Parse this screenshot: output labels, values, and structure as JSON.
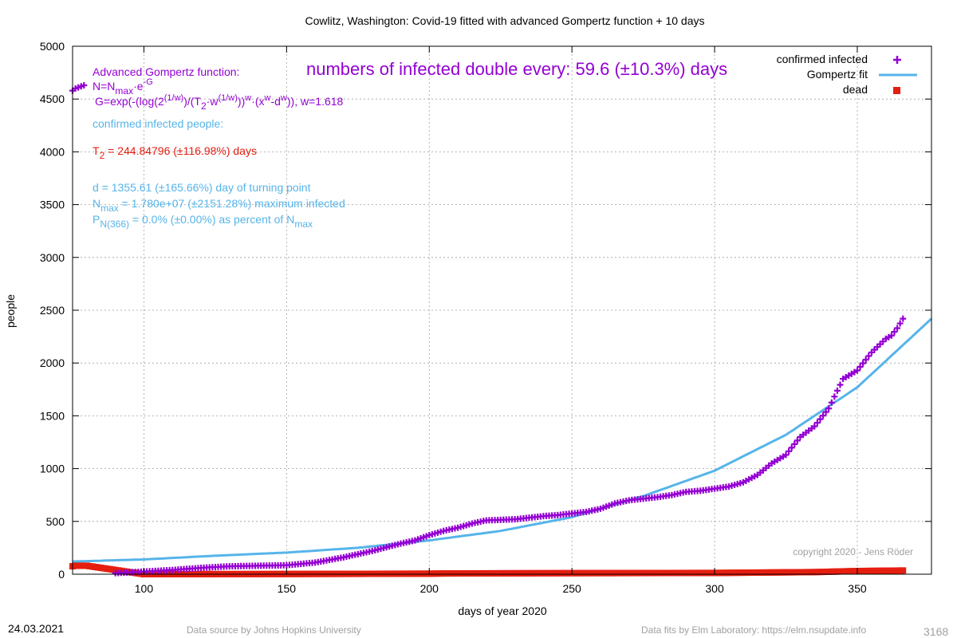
{
  "chart_data": {
    "type": "scatter",
    "title": "Cowlitz,  Washington: Covid-19 fitted with advanced Gompertz function + 10 days",
    "xlabel": "days of year 2020",
    "ylabel": "people",
    "xlim": [
      75,
      376
    ],
    "ylim": [
      0,
      5000
    ],
    "grid": true,
    "legend_position": "top-right",
    "x_ticks": [
      "100",
      "150",
      "200",
      "250",
      "300",
      "350"
    ],
    "y_ticks": [
      "0",
      "500",
      "1000",
      "1500",
      "2000",
      "2500",
      "3000",
      "3500",
      "4000",
      "4500",
      "5000"
    ],
    "legend": [
      "confirmed infected",
      "Gompertz fit",
      "dead"
    ],
    "colors": {
      "infected": "#9400d3",
      "fit": "#56b4e9",
      "dead": "#e51e10",
      "grid": "#a0a0a0"
    },
    "series": [
      {
        "name": "confirmed infected",
        "style": "plus",
        "x": [
          75,
          76,
          77,
          78,
          79,
          90,
          100,
          110,
          120,
          130,
          140,
          150,
          160,
          170,
          180,
          190,
          195,
          200,
          205,
          210,
          215,
          220,
          225,
          230,
          235,
          240,
          245,
          250,
          255,
          260,
          265,
          270,
          275,
          280,
          285,
          290,
          295,
          300,
          305,
          310,
          315,
          320,
          325,
          330,
          335,
          340,
          345,
          350,
          355,
          360,
          362,
          364,
          366
        ],
        "y": [
          4580,
          4600,
          4610,
          4620,
          4630,
          10,
          25,
          40,
          60,
          75,
          80,
          85,
          110,
          160,
          220,
          290,
          320,
          370,
          410,
          440,
          480,
          510,
          515,
          520,
          535,
          550,
          560,
          575,
          590,
          620,
          670,
          700,
          715,
          730,
          750,
          780,
          790,
          810,
          830,
          870,
          940,
          1050,
          1130,
          1300,
          1400,
          1570,
          1850,
          1930,
          2100,
          2230,
          2260,
          2330,
          2420
        ]
      },
      {
        "name": "Gompertz fit",
        "style": "line",
        "x": [
          75,
          100,
          125,
          150,
          175,
          200,
          225,
          250,
          275,
          300,
          325,
          350,
          376
        ],
        "y": [
          120,
          140,
          175,
          205,
          250,
          320,
          410,
          540,
          740,
          980,
          1320,
          1770,
          2420
        ]
      },
      {
        "name": "dead",
        "style": "square",
        "x": [
          75,
          76,
          78,
          80,
          100,
          150,
          200,
          205,
          250,
          300,
          335,
          350,
          366
        ],
        "y": [
          75,
          80,
          80,
          80,
          0,
          2,
          5,
          7,
          10,
          12,
          20,
          30,
          35
        ]
      }
    ]
  },
  "annotations": {
    "heading": "numbers of infected double every: 59.6 (±10.3%) days",
    "func_title": "Advanced Gompertz function:",
    "eq1": "N=N",
    "eq1_sub": "max",
    "eq1_rest": "·e",
    "eq1_sup": "-G",
    "eq2": "G=exp(-(log(2",
    "eq2_sup1": "(1/w)",
    "eq2_b": ")/(T",
    "eq2_sub": "2",
    "eq2_c": "·w",
    "eq2_sup2": "(1/w)",
    "eq2_d": "))",
    "eq2_sup3": "w",
    "eq2_e": "·(x",
    "eq2_sup4": "w",
    "eq2_f": "-d",
    "eq2_sup5": "w",
    "eq2_g": ")), w=1.618",
    "confirmed_title": "confirmed infected people:",
    "t2_a": "T",
    "t2_sub": "2",
    "t2_b": " = 244.84796 (±116.98%) days",
    "d_line": "d = 1355.61 (±165.66%) day of turning point",
    "nmax_a": "N",
    "nmax_sub": "max",
    "nmax_b": " = 1.780e+07 (±2151.28%) maximum infected",
    "p_a": "P",
    "p_sub": "N(366)",
    "p_b": " = 0.0% (±0.00%) as percent of N",
    "p_sub2": "max",
    "copyright": "copyright 2020 - Jens Röder"
  },
  "footer": {
    "date": "24.03.2021",
    "source": "Data source by Johns Hopkins University",
    "fits": "Data fits by Elm Laboratory: https://elm.nsupdate.info",
    "id": "3168"
  }
}
